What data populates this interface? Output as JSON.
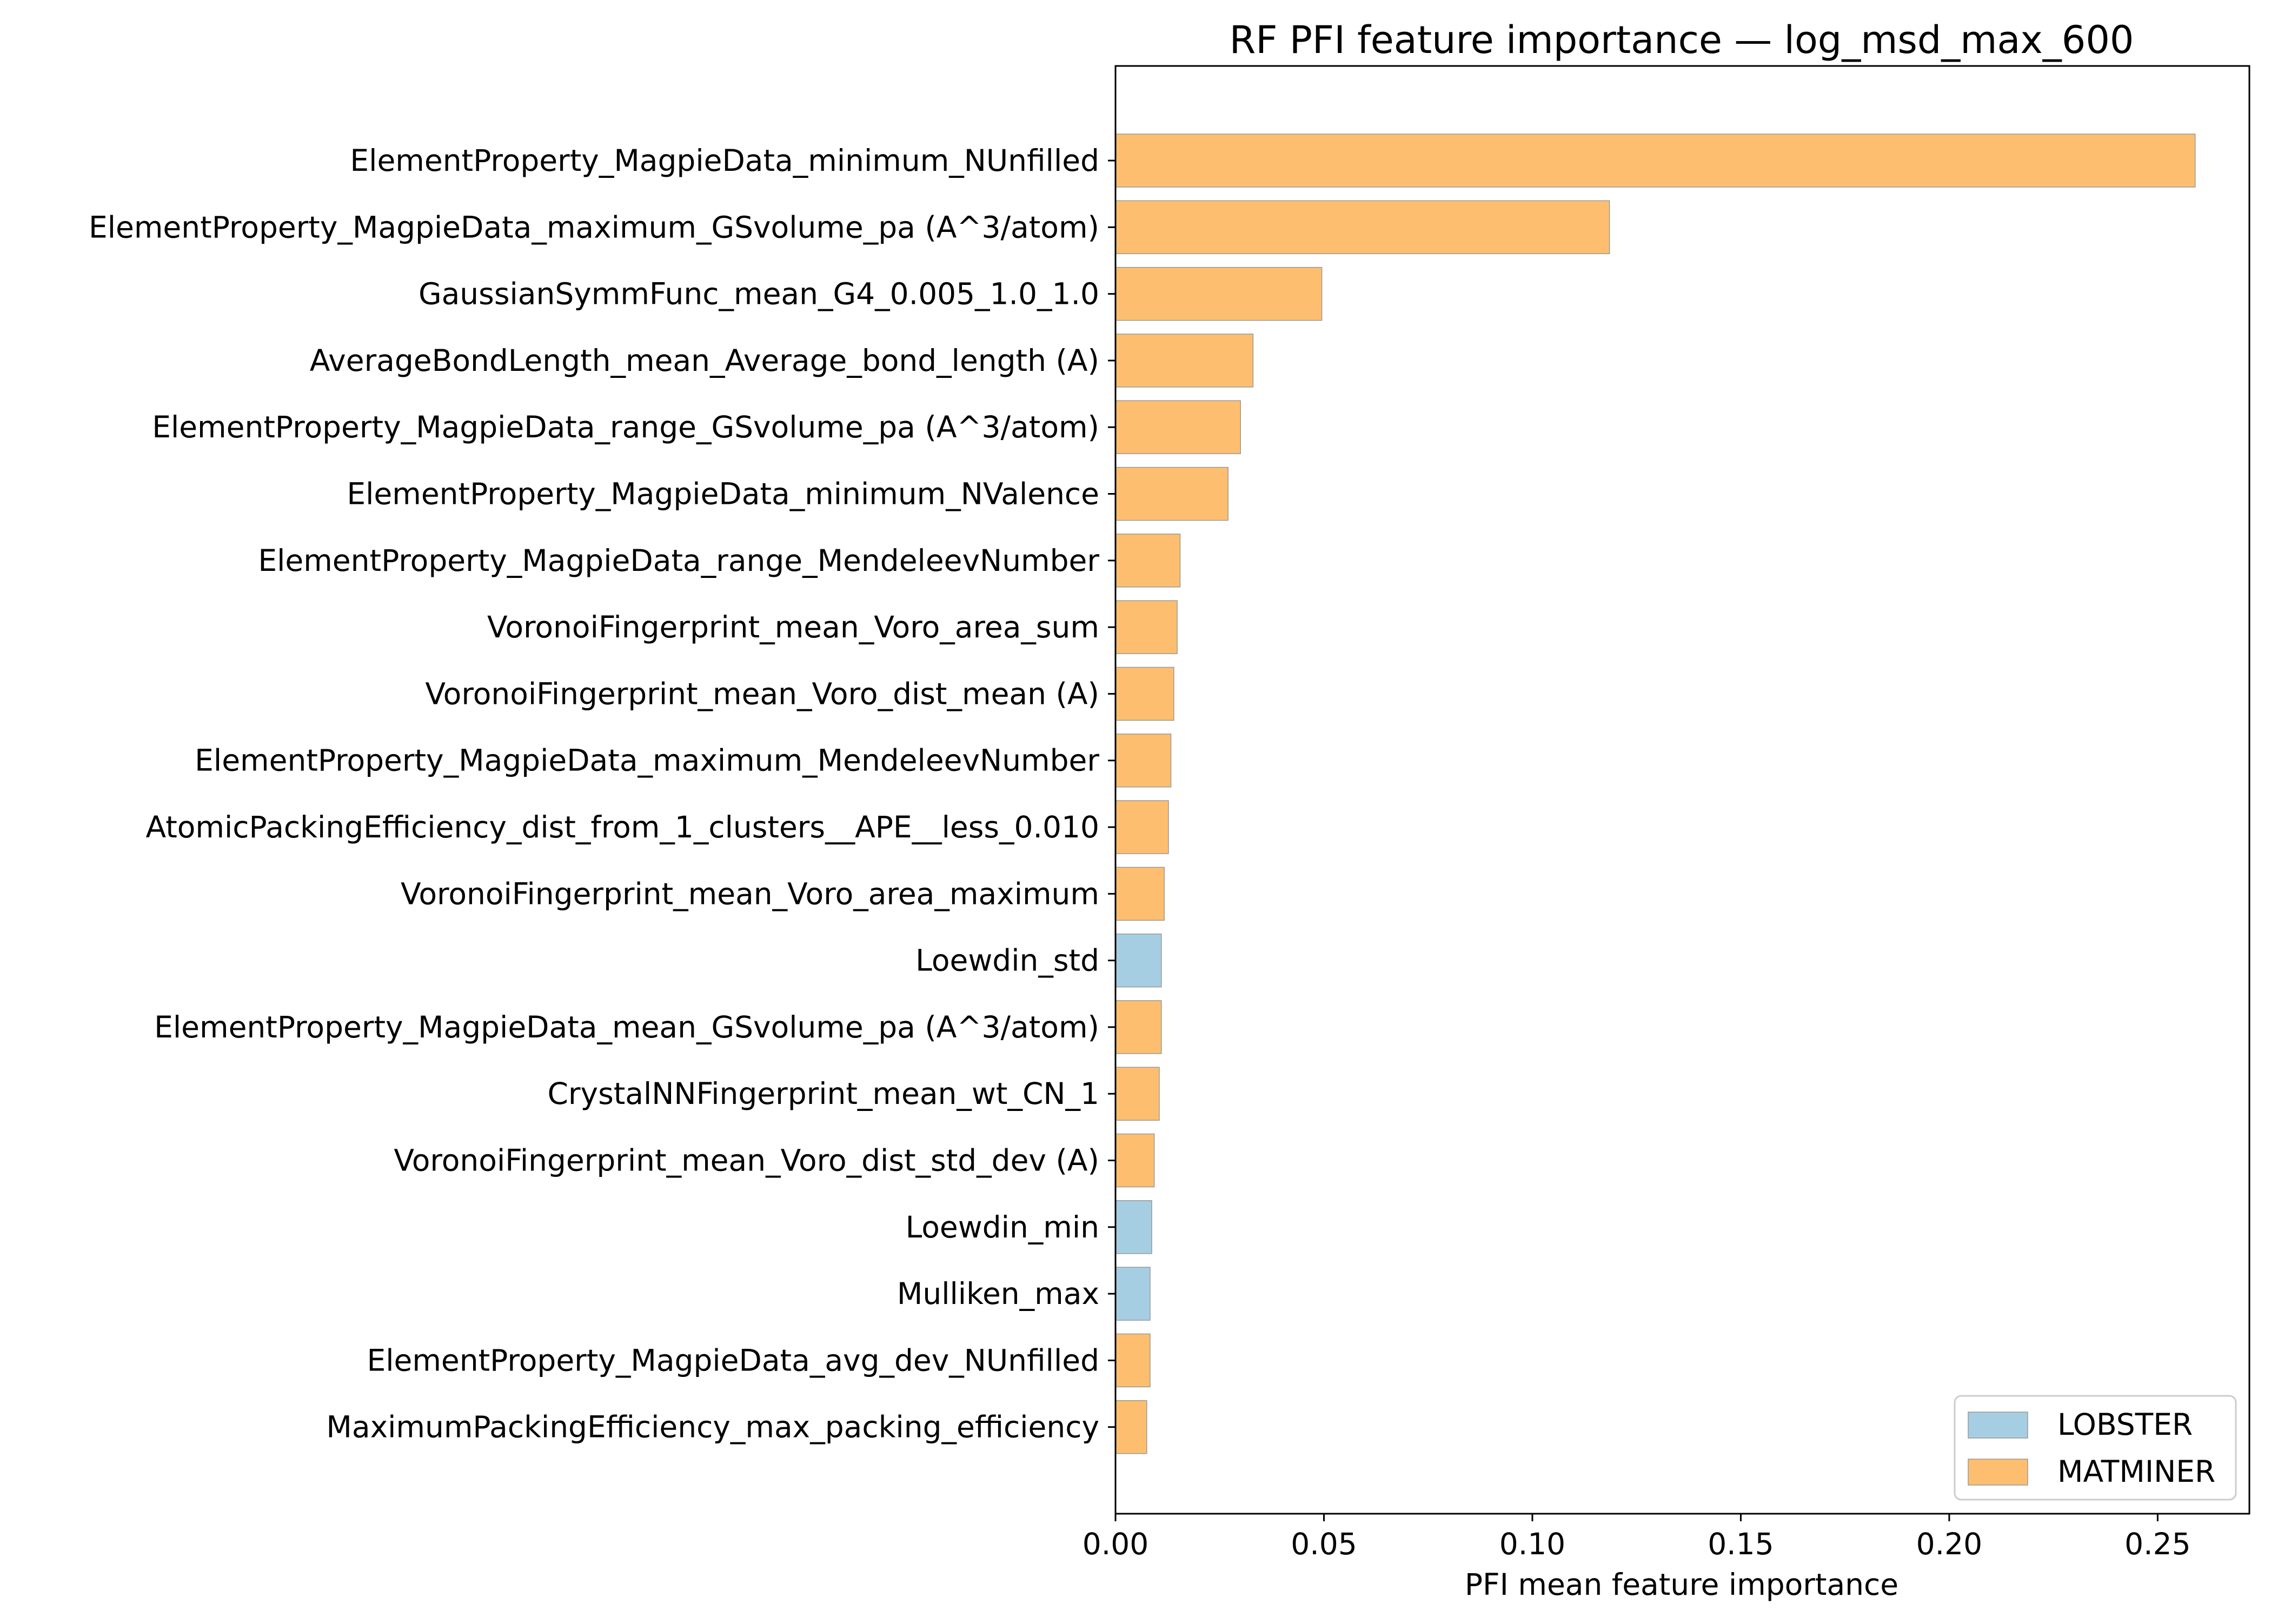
{
  "chart_data": {
    "type": "bar",
    "orientation": "horizontal",
    "title": "RF PFI feature importance — log_msd_max_600",
    "xlabel": "PFI mean feature importance",
    "ylabel": "",
    "xlim": [
      0,
      0.272
    ],
    "xticks": [
      0.0,
      0.05,
      0.1,
      0.15,
      0.2,
      0.25
    ],
    "xtick_labels": [
      "0.00",
      "0.05",
      "0.10",
      "0.15",
      "0.20",
      "0.25"
    ],
    "grid": false,
    "legend_position": "bottom-right",
    "legend": [
      {
        "label": "LOBSTER",
        "color": "#a6cee3"
      },
      {
        "label": "MATMINER",
        "color": "#fdbf6f"
      }
    ],
    "categories": [
      "ElementProperty_MagpieData_minimum_NUnfilled",
      "ElementProperty_MagpieData_maximum_GSvolume_pa (A^3/atom)",
      "GaussianSymmFunc_mean_G4_0.005_1.0_1.0",
      "AverageBondLength_mean_Average_bond_length (A)",
      "ElementProperty_MagpieData_range_GSvolume_pa (A^3/atom)",
      "ElementProperty_MagpieData_minimum_NValence",
      "ElementProperty_MagpieData_range_MendeleevNumber",
      "VoronoiFingerprint_mean_Voro_area_sum",
      "VoronoiFingerprint_mean_Voro_dist_mean (A)",
      "ElementProperty_MagpieData_maximum_MendeleevNumber",
      "AtomicPackingEfficiency_dist_from_1_clusters__APE__less_0.010",
      "VoronoiFingerprint_mean_Voro_area_maximum",
      "Loewdin_std",
      "ElementProperty_MagpieData_mean_GSvolume_pa (A^3/atom)",
      "CrystalNNFingerprint_mean_wt_CN_1",
      "VoronoiFingerprint_mean_Voro_dist_std_dev (A)",
      "Loewdin_min",
      "Mulliken_max",
      "ElementProperty_MagpieData_avg_dev_NUnfilled",
      "MaximumPackingEfficiency_max_packing_efficiency"
    ],
    "values": [
      0.259,
      0.1185,
      0.0495,
      0.033,
      0.03,
      0.027,
      0.0155,
      0.0148,
      0.014,
      0.0133,
      0.0127,
      0.0117,
      0.011,
      0.011,
      0.0105,
      0.0093,
      0.0087,
      0.0083,
      0.0083,
      0.0075
    ],
    "groups": [
      "MATMINER",
      "MATMINER",
      "MATMINER",
      "MATMINER",
      "MATMINER",
      "MATMINER",
      "MATMINER",
      "MATMINER",
      "MATMINER",
      "MATMINER",
      "MATMINER",
      "MATMINER",
      "LOBSTER",
      "MATMINER",
      "MATMINER",
      "MATMINER",
      "LOBSTER",
      "LOBSTER",
      "MATMINER",
      "MATMINER"
    ]
  }
}
